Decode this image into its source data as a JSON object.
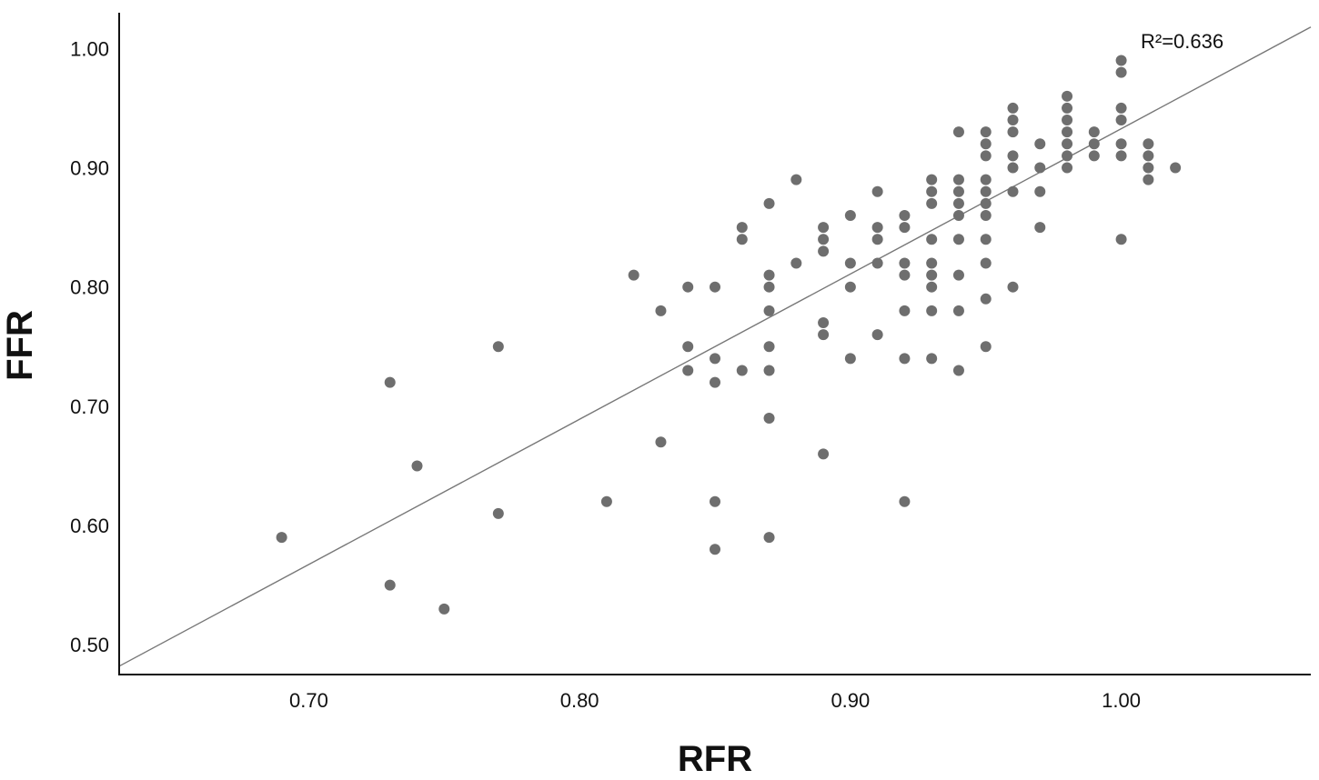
{
  "chart_data": {
    "type": "scatter",
    "title": "",
    "xlabel": "RFR",
    "ylabel": "FFR",
    "xlim": [
      0.63,
      1.07
    ],
    "ylim": [
      0.475,
      1.03
    ],
    "x_ticks": [
      {
        "value": 0.7,
        "label": "0.70"
      },
      {
        "value": 0.8,
        "label": "0.80"
      },
      {
        "value": 0.9,
        "label": "0.90"
      },
      {
        "value": 1.0,
        "label": "1.00"
      }
    ],
    "y_ticks": [
      {
        "value": 0.5,
        "label": "0.50"
      },
      {
        "value": 0.6,
        "label": "0.60"
      },
      {
        "value": 0.7,
        "label": "0.70"
      },
      {
        "value": 0.8,
        "label": "0.80"
      },
      {
        "value": 0.9,
        "label": "0.90"
      },
      {
        "value": 1.0,
        "label": "1.00"
      }
    ],
    "grid": false,
    "point_color": "#6e6e6e",
    "line_color": "#777777",
    "annotation": "R²=0.636",
    "fit_line": [
      [
        0.63,
        0.482
      ],
      [
        1.07,
        1.018
      ]
    ],
    "points": [
      [
        0.69,
        0.59
      ],
      [
        0.73,
        0.72
      ],
      [
        0.73,
        0.55
      ],
      [
        0.74,
        0.65
      ],
      [
        0.75,
        0.53
      ],
      [
        0.77,
        0.75
      ],
      [
        0.77,
        0.61
      ],
      [
        0.81,
        0.62
      ],
      [
        0.82,
        0.81
      ],
      [
        0.83,
        0.78
      ],
      [
        0.83,
        0.67
      ],
      [
        0.84,
        0.8
      ],
      [
        0.84,
        0.75
      ],
      [
        0.84,
        0.73
      ],
      [
        0.85,
        0.8
      ],
      [
        0.85,
        0.74
      ],
      [
        0.85,
        0.72
      ],
      [
        0.85,
        0.62
      ],
      [
        0.85,
        0.58
      ],
      [
        0.86,
        0.85
      ],
      [
        0.86,
        0.84
      ],
      [
        0.86,
        0.73
      ],
      [
        0.87,
        0.87
      ],
      [
        0.87,
        0.81
      ],
      [
        0.87,
        0.8
      ],
      [
        0.87,
        0.78
      ],
      [
        0.87,
        0.75
      ],
      [
        0.87,
        0.73
      ],
      [
        0.87,
        0.69
      ],
      [
        0.87,
        0.59
      ],
      [
        0.88,
        0.89
      ],
      [
        0.88,
        0.82
      ],
      [
        0.89,
        0.85
      ],
      [
        0.89,
        0.84
      ],
      [
        0.89,
        0.83
      ],
      [
        0.89,
        0.77
      ],
      [
        0.89,
        0.76
      ],
      [
        0.89,
        0.66
      ],
      [
        0.9,
        0.86
      ],
      [
        0.9,
        0.82
      ],
      [
        0.9,
        0.8
      ],
      [
        0.9,
        0.74
      ],
      [
        0.91,
        0.88
      ],
      [
        0.91,
        0.85
      ],
      [
        0.91,
        0.84
      ],
      [
        0.91,
        0.82
      ],
      [
        0.91,
        0.76
      ],
      [
        0.92,
        0.86
      ],
      [
        0.92,
        0.85
      ],
      [
        0.92,
        0.82
      ],
      [
        0.92,
        0.81
      ],
      [
        0.92,
        0.78
      ],
      [
        0.92,
        0.74
      ],
      [
        0.92,
        0.62
      ],
      [
        0.93,
        0.89
      ],
      [
        0.93,
        0.88
      ],
      [
        0.93,
        0.87
      ],
      [
        0.93,
        0.84
      ],
      [
        0.93,
        0.82
      ],
      [
        0.93,
        0.81
      ],
      [
        0.93,
        0.8
      ],
      [
        0.93,
        0.78
      ],
      [
        0.93,
        0.74
      ],
      [
        0.94,
        0.93
      ],
      [
        0.94,
        0.89
      ],
      [
        0.94,
        0.88
      ],
      [
        0.94,
        0.87
      ],
      [
        0.94,
        0.86
      ],
      [
        0.94,
        0.84
      ],
      [
        0.94,
        0.81
      ],
      [
        0.94,
        0.78
      ],
      [
        0.94,
        0.73
      ],
      [
        0.95,
        0.93
      ],
      [
        0.95,
        0.92
      ],
      [
        0.95,
        0.91
      ],
      [
        0.95,
        0.89
      ],
      [
        0.95,
        0.88
      ],
      [
        0.95,
        0.87
      ],
      [
        0.95,
        0.86
      ],
      [
        0.95,
        0.84
      ],
      [
        0.95,
        0.82
      ],
      [
        0.95,
        0.79
      ],
      [
        0.95,
        0.75
      ],
      [
        0.96,
        0.95
      ],
      [
        0.96,
        0.94
      ],
      [
        0.96,
        0.93
      ],
      [
        0.96,
        0.91
      ],
      [
        0.96,
        0.9
      ],
      [
        0.96,
        0.88
      ],
      [
        0.96,
        0.8
      ],
      [
        0.97,
        0.92
      ],
      [
        0.97,
        0.9
      ],
      [
        0.97,
        0.88
      ],
      [
        0.97,
        0.85
      ],
      [
        0.98,
        0.96
      ],
      [
        0.98,
        0.95
      ],
      [
        0.98,
        0.94
      ],
      [
        0.98,
        0.93
      ],
      [
        0.98,
        0.92
      ],
      [
        0.98,
        0.91
      ],
      [
        0.98,
        0.9
      ],
      [
        0.99,
        0.93
      ],
      [
        0.99,
        0.92
      ],
      [
        0.99,
        0.91
      ],
      [
        1.0,
        0.99
      ],
      [
        1.0,
        0.98
      ],
      [
        1.0,
        0.95
      ],
      [
        1.0,
        0.94
      ],
      [
        1.0,
        0.92
      ],
      [
        1.0,
        0.91
      ],
      [
        1.0,
        0.84
      ],
      [
        1.01,
        0.92
      ],
      [
        1.01,
        0.91
      ],
      [
        1.01,
        0.9
      ],
      [
        1.01,
        0.89
      ],
      [
        1.02,
        0.9
      ]
    ]
  }
}
